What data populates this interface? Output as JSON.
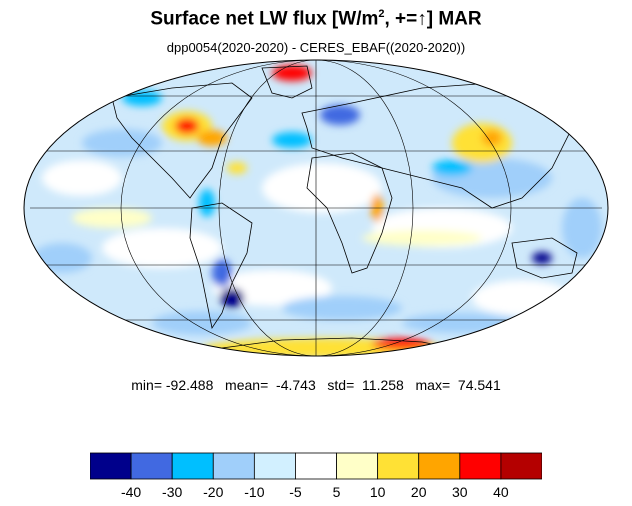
{
  "title": {
    "main": "Surface net LW flux [W/m",
    "sup": "2",
    "rest": ", +=",
    "arrow": "↑",
    "end": "]  MAR"
  },
  "subtitle": "dpp0054(2020-2020) - CERES_EBAF((2020-2020))",
  "stats": {
    "min_label": "min=",
    "min": "-92.488",
    "mean_label": "mean=",
    "mean": "-4.743",
    "std_label": "std=",
    "std": "11.258",
    "max_label": "max=",
    "max": "74.541"
  },
  "map": {
    "projection": "mollweide",
    "field": "difference of surface net LW flux",
    "grid": true
  },
  "colorbar": {
    "colors": [
      "#00008b",
      "#4169e1",
      "#00bfff",
      "#a0cffa",
      "#d2f0ff",
      "#ffffff",
      "#ffffc8",
      "#ffe135",
      "#ffa500",
      "#ff0000",
      "#b40000"
    ],
    "tick_labels": [
      "-40",
      "-30",
      "-20",
      "-10",
      "-5",
      "5",
      "10",
      "20",
      "30",
      "40"
    ]
  }
}
